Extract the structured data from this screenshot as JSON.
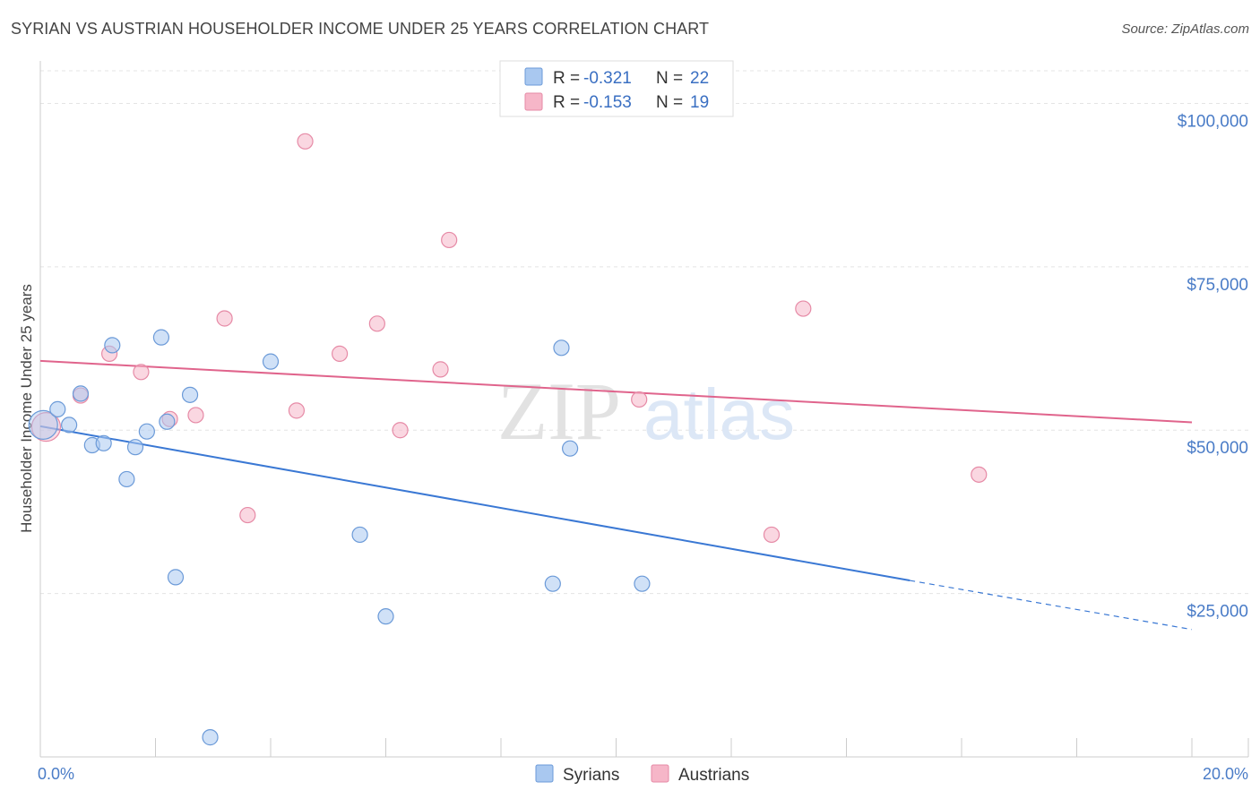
{
  "title": "SYRIAN VS AUSTRIAN HOUSEHOLDER INCOME UNDER 25 YEARS CORRELATION CHART",
  "source": "Source: ZipAtlas.com",
  "watermark": {
    "zip": "ZIP",
    "atlas": "atlas"
  },
  "legend": {
    "r_label": "R =",
    "n_label": "N =",
    "rows": [
      {
        "series": "Syrians",
        "r": "-0.321",
        "n": "22",
        "color": "#a9c8f0"
      },
      {
        "series": "Austrians",
        "r": "-0.153",
        "n": "19",
        "color": "#f6b6c8"
      }
    ]
  },
  "chart_data": {
    "type": "scatter",
    "title": "SYRIAN VS AUSTRIAN HOUSEHOLDER INCOME UNDER 25 YEARS CORRELATION CHART",
    "xlabel": "",
    "ylabel": "Householder Income Under 25 years",
    "xlim": [
      0,
      20
    ],
    "ylim": [
      0,
      105000
    ],
    "x_tick_labels": [
      "0.0%",
      "20.0%"
    ],
    "y_ticks": [
      {
        "value": 25000,
        "label": "$25,000"
      },
      {
        "value": 50000,
        "label": "$50,000"
      },
      {
        "value": 75000,
        "label": "$75,000"
      },
      {
        "value": 100000,
        "label": "$100,000"
      }
    ],
    "grid": true,
    "series": [
      {
        "name": "Syrians",
        "color": "#a9c8f0",
        "stroke": "#6b9ad8",
        "line_color": "#3a78d4",
        "points": [
          {
            "x": 0.05,
            "y": 50800,
            "big": true
          },
          {
            "x": 0.3,
            "y": 53200
          },
          {
            "x": 0.5,
            "y": 50800
          },
          {
            "x": 0.7,
            "y": 55600
          },
          {
            "x": 0.9,
            "y": 47700
          },
          {
            "x": 1.1,
            "y": 48000
          },
          {
            "x": 1.25,
            "y": 63000
          },
          {
            "x": 1.5,
            "y": 42500
          },
          {
            "x": 1.65,
            "y": 47400
          },
          {
            "x": 1.85,
            "y": 49800
          },
          {
            "x": 2.1,
            "y": 64200
          },
          {
            "x": 2.2,
            "y": 51300
          },
          {
            "x": 2.35,
            "y": 27500
          },
          {
            "x": 2.6,
            "y": 55400
          },
          {
            "x": 2.95,
            "y": 3000
          },
          {
            "x": 4.0,
            "y": 60500
          },
          {
            "x": 5.55,
            "y": 34000
          },
          {
            "x": 6.0,
            "y": 21500
          },
          {
            "x": 8.9,
            "y": 26500
          },
          {
            "x": 9.05,
            "y": 62600
          },
          {
            "x": 9.2,
            "y": 47200
          },
          {
            "x": 10.45,
            "y": 26500
          }
        ],
        "trend": {
          "x0": 0,
          "y0": 50600,
          "x1": 15.1,
          "y1": 27000,
          "dash_x1": 20,
          "dash_y1": 19500
        }
      },
      {
        "name": "Austrians",
        "color": "#f6b6c8",
        "stroke": "#e68aa6",
        "line_color": "#e0648c",
        "points": [
          {
            "x": 0.1,
            "y": 50500,
            "big": true
          },
          {
            "x": 0.7,
            "y": 55300
          },
          {
            "x": 1.2,
            "y": 61700
          },
          {
            "x": 1.75,
            "y": 58900
          },
          {
            "x": 2.25,
            "y": 51700
          },
          {
            "x": 2.7,
            "y": 52300
          },
          {
            "x": 3.2,
            "y": 67100
          },
          {
            "x": 3.6,
            "y": 37000
          },
          {
            "x": 4.45,
            "y": 53000
          },
          {
            "x": 4.6,
            "y": 94200
          },
          {
            "x": 5.2,
            "y": 61700
          },
          {
            "x": 5.85,
            "y": 66300
          },
          {
            "x": 6.25,
            "y": 50000
          },
          {
            "x": 6.95,
            "y": 59300
          },
          {
            "x": 7.1,
            "y": 79100
          },
          {
            "x": 10.4,
            "y": 54700
          },
          {
            "x": 12.7,
            "y": 34000
          },
          {
            "x": 13.25,
            "y": 68600
          },
          {
            "x": 16.3,
            "y": 43200
          }
        ],
        "trend": {
          "x0": 0,
          "y0": 60600,
          "x1": 20,
          "y1": 51200
        }
      }
    ]
  }
}
